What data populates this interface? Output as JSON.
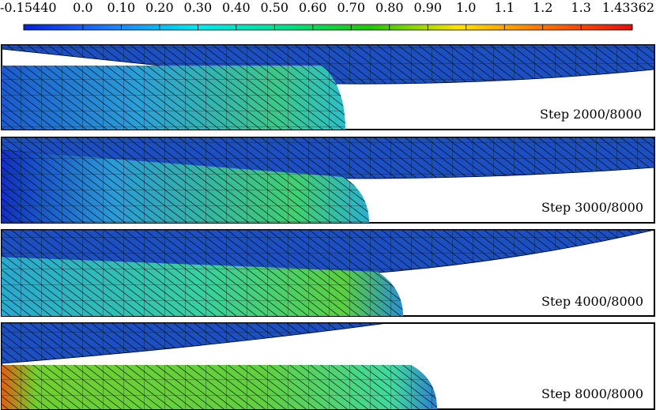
{
  "colorbar": {
    "range": [
      -0.1544,
      1.43362
    ],
    "ticks": [
      {
        "value": -0.1544,
        "label": "-0.15440"
      },
      {
        "value": 0,
        "label": "0.0"
      },
      {
        "value": 0.1,
        "label": "0.10"
      },
      {
        "value": 0.2,
        "label": "0.20"
      },
      {
        "value": 0.3,
        "label": "0.30"
      },
      {
        "value": 0.4,
        "label": "0.40"
      },
      {
        "value": 0.5,
        "label": "0.50"
      },
      {
        "value": 0.6,
        "label": "0.60"
      },
      {
        "value": 0.7,
        "label": "0.70"
      },
      {
        "value": 0.8,
        "label": "0.80"
      },
      {
        "value": 0.9,
        "label": "0.90"
      },
      {
        "value": 1,
        "label": "1.0"
      },
      1.1,
      1.2,
      1.3,
      1.43362
    ],
    "colormap": [
      "#0a1fd8",
      "#1e7cff",
      "#00e8f0",
      "#00e08a",
      "#22c800",
      "#ffe400",
      "#ff7000",
      "#e01010"
    ]
  },
  "panels": [
    {
      "label": "Step 2000/8000"
    },
    {
      "label": "Step 3000/8000"
    },
    {
      "label": "Step 4000/8000"
    },
    {
      "label": "Step 8000/8000"
    }
  ]
}
